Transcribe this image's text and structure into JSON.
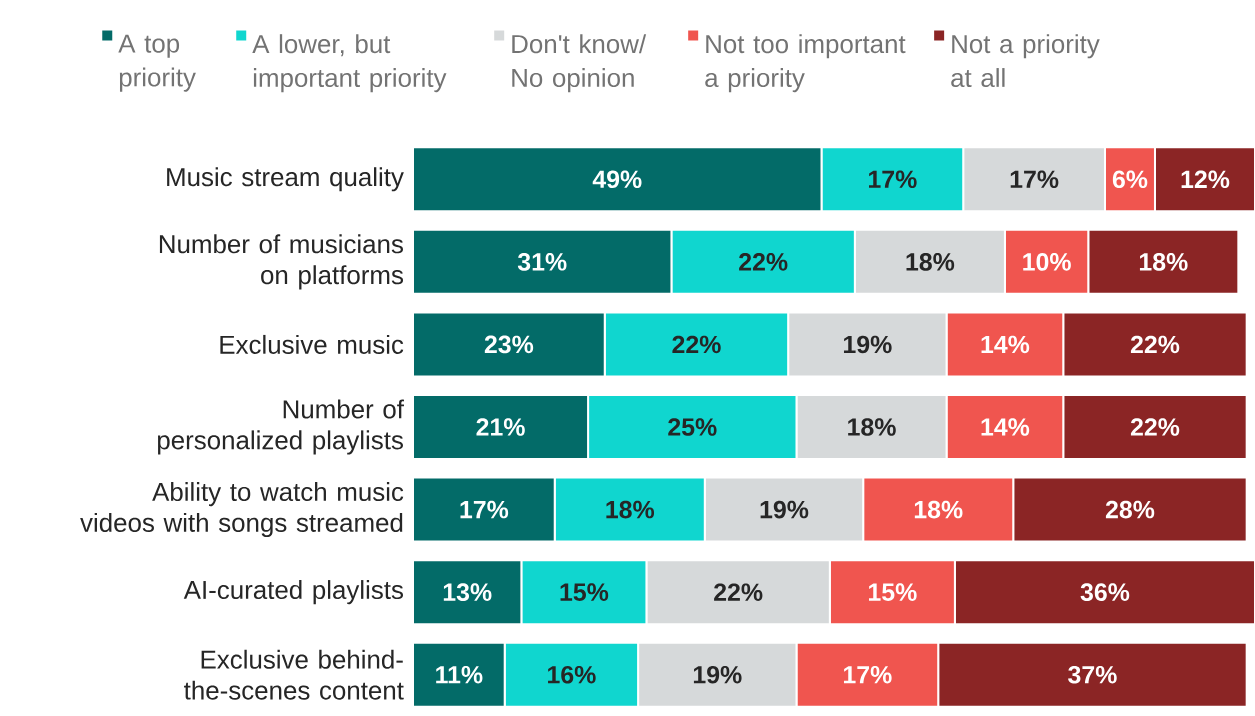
{
  "chart_data": {
    "type": "bar",
    "orientation": "horizontal",
    "stacked": true,
    "legend": "top",
    "categories": [
      "Music stream quality",
      "Number of musicians on platforms",
      "Exclusive music",
      "Number of personalized playlists",
      "Ability to watch music videos with songs streamed",
      "AI-curated playlists",
      "Exclusive behind-the-scenes content"
    ],
    "series": [
      {
        "name": "A top priority",
        "color": "#036b68",
        "values": [
          49,
          31,
          23,
          21,
          17,
          13,
          11
        ],
        "value_labels": [
          "49%",
          "31%",
          "23%",
          "21%",
          "17%",
          "13%",
          "11%"
        ]
      },
      {
        "name": "A lower, but important priority",
        "color": "#10d6cf",
        "values": [
          17,
          22,
          22,
          25,
          18,
          15,
          16
        ],
        "value_labels": [
          "17%",
          "22%",
          "22%",
          "25%",
          "18%",
          "15%",
          "16%"
        ]
      },
      {
        "name": "Don't know/ No opinion",
        "color": "#d6d9da",
        "values": [
          17,
          18,
          19,
          18,
          19,
          22,
          19
        ],
        "value_labels": [
          "17%",
          "18%",
          "19%",
          "18%",
          "19%",
          "22%",
          "19%"
        ]
      },
      {
        "name": "Not too important a priority",
        "color": "#f0554f",
        "values": [
          6,
          10,
          14,
          14,
          18,
          15,
          17
        ],
        "value_labels": [
          "6%",
          "10%",
          "14%",
          "14%",
          "18%",
          "15%",
          "17%"
        ]
      },
      {
        "name": "Not a priority at all",
        "color": "#8b2525",
        "values": [
          12,
          18,
          22,
          22,
          28,
          36,
          37
        ],
        "value_labels": [
          "12%",
          "18%",
          "22%",
          "22%",
          "28%",
          "36%",
          "37%"
        ]
      }
    ]
  }
}
